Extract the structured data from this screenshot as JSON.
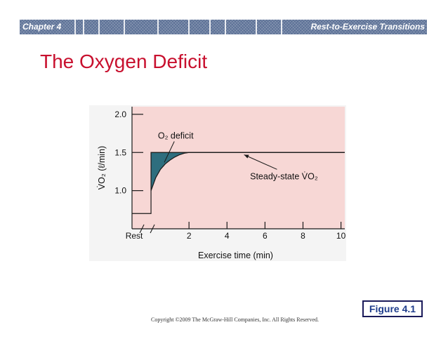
{
  "banner": {
    "chapter": "Chapter 4",
    "section": "Rest-to-Exercise Transitions"
  },
  "slide_title": "The Oxygen Deficit",
  "figure_label": "Figure 4.1",
  "copyright": "Copyright ©2009 The McGraw-Hill Companies, Inc. All Rights Reserved.",
  "colors": {
    "banner": "#5a6f95",
    "title": "#c8102e",
    "plot_background": "#f7d7d5",
    "deficit_fill": "#2e6e7e",
    "figure_text": "#1e3c8c"
  },
  "chart_data": {
    "type": "line",
    "xlabel": "Exercise time (min)",
    "ylabel": "V̇O₂ (ℓ/min)",
    "x_ticks": [
      {
        "value": 0,
        "label": "Rest"
      },
      {
        "value": 2,
        "label": "2"
      },
      {
        "value": 4,
        "label": "4"
      },
      {
        "value": 6,
        "label": "6"
      },
      {
        "value": 8,
        "label": "8"
      },
      {
        "value": 10,
        "label": "10"
      }
    ],
    "y_ticks": [
      {
        "value": 1.0,
        "label": "1.0"
      },
      {
        "value": 1.5,
        "label": "1.5"
      },
      {
        "value": 2.0,
        "label": "2.0"
      }
    ],
    "xlim": [
      -1,
      10.2
    ],
    "ylim": [
      0.5,
      2.1
    ],
    "axis_break": true,
    "rest_level": 0.7,
    "exercise_start": 0,
    "steady_state": 1.5,
    "series": [
      {
        "x": [
          -1,
          0,
          0,
          0.25,
          0.5,
          0.75,
          1.0,
          1.25,
          1.5,
          1.75,
          2.0,
          2.5,
          3,
          4,
          5,
          6,
          7,
          8,
          9,
          10.2
        ],
        "y": [
          0.7,
          0.7,
          1.0,
          1.17,
          1.28,
          1.35,
          1.4,
          1.44,
          1.47,
          1.49,
          1.5,
          1.5,
          1.5,
          1.5,
          1.5,
          1.5,
          1.5,
          1.5,
          1.5,
          1.5
        ]
      }
    ],
    "annotations": [
      {
        "text": "O₂ deficit",
        "x": 1.3,
        "y": 1.7
      },
      {
        "text": "Steady-state V̇O₂",
        "x": 7.0,
        "y": 1.15
      }
    ],
    "grid": false
  }
}
